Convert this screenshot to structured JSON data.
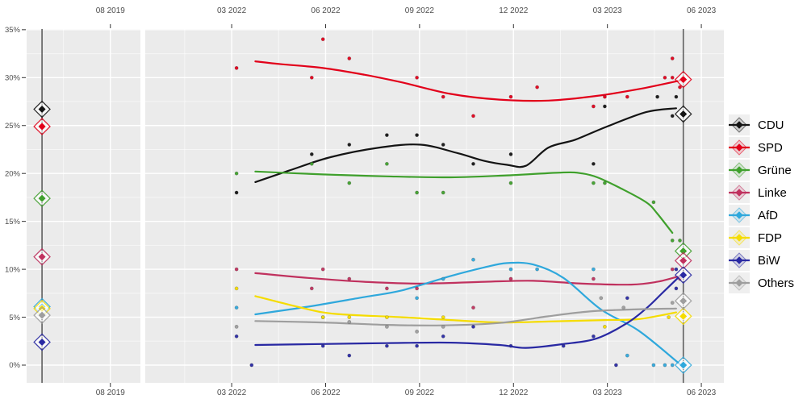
{
  "chart_data": {
    "type": "line",
    "title": "",
    "legend_position": "right",
    "grid": "on",
    "y_axis": {
      "unit": "%",
      "range": [
        0,
        35
      ],
      "ticks": [
        {
          "label": "0%",
          "v": 0
        },
        {
          "label": "5%",
          "v": 5
        },
        {
          "label": "10%",
          "v": 10
        },
        {
          "label": "15%",
          "v": 15
        },
        {
          "label": "20%",
          "v": 20
        },
        {
          "label": "25%",
          "v": 25
        },
        {
          "label": "30%",
          "v": 30
        },
        {
          "label": "35%",
          "v": 35
        }
      ]
    },
    "x_axis": {
      "facet_2019": [
        {
          "label": "08 2019",
          "t": 2019.583
        }
      ],
      "facet_2023": [
        {
          "label": "03 2022",
          "t": 2022.167
        },
        {
          "label": "06 2022",
          "t": 2022.417
        },
        {
          "label": "09 2022",
          "t": 2022.667
        },
        {
          "label": "12 2022",
          "t": 2022.917
        },
        {
          "label": "03 2023",
          "t": 2023.167
        },
        {
          "label": "06 2023",
          "t": 2023.417
        }
      ]
    },
    "election_lines": {
      "left_t": 2019.401,
      "right_t": 2023.369
    },
    "colors": {
      "election_line": "#606060",
      "panel_bg": "#EBEBEB",
      "gridline": "#FFFFFF",
      "axis_text": "#4D4D4D"
    },
    "parties": [
      {
        "id": "cdu",
        "label": "CDU",
        "color": "#141414",
        "result_2019": 26.7,
        "result_2023": 26.2,
        "trend": [
          [
            2022.23,
            19.1
          ],
          [
            2022.32,
            20.3
          ],
          [
            2022.43,
            21.7
          ],
          [
            2022.56,
            22.7
          ],
          [
            2022.67,
            23.0
          ],
          [
            2022.77,
            22.1
          ],
          [
            2022.84,
            21.3
          ],
          [
            2022.9,
            20.9
          ],
          [
            2022.95,
            20.8
          ],
          [
            2023.01,
            22.7
          ],
          [
            2023.08,
            23.5
          ],
          [
            2023.16,
            24.8
          ],
          [
            2023.27,
            26.4
          ],
          [
            2023.35,
            26.8
          ]
        ],
        "polls": [
          [
            2022.18,
            18
          ],
          [
            2022.38,
            22
          ],
          [
            2022.48,
            23
          ],
          [
            2022.58,
            24
          ],
          [
            2022.66,
            24
          ],
          [
            2022.73,
            23
          ],
          [
            2022.81,
            21
          ],
          [
            2022.91,
            22
          ],
          [
            2023.13,
            21
          ],
          [
            2023.16,
            27
          ],
          [
            2023.3,
            28
          ],
          [
            2023.34,
            26
          ],
          [
            2023.35,
            28
          ]
        ]
      },
      {
        "id": "spd",
        "label": "SPD",
        "color": "#E2001A",
        "result_2019": 24.9,
        "result_2023": 29.8,
        "trend": [
          [
            2022.23,
            31.7
          ],
          [
            2022.3,
            31.4
          ],
          [
            2022.41,
            31.0
          ],
          [
            2022.52,
            30.3
          ],
          [
            2022.62,
            29.5
          ],
          [
            2022.75,
            28.3
          ],
          [
            2022.88,
            27.7
          ],
          [
            2023.01,
            27.6
          ],
          [
            2023.14,
            28.1
          ],
          [
            2023.25,
            28.8
          ],
          [
            2023.36,
            29.7
          ]
        ],
        "polls": [
          [
            2022.18,
            31
          ],
          [
            2022.38,
            30
          ],
          [
            2022.41,
            34
          ],
          [
            2022.48,
            32
          ],
          [
            2022.66,
            30
          ],
          [
            2022.73,
            28
          ],
          [
            2022.81,
            26
          ],
          [
            2022.91,
            28
          ],
          [
            2022.98,
            29
          ],
          [
            2023.13,
            27
          ],
          [
            2023.16,
            28
          ],
          [
            2023.22,
            28
          ],
          [
            2023.32,
            30
          ],
          [
            2023.34,
            32
          ],
          [
            2023.34,
            30
          ],
          [
            2023.36,
            29
          ]
        ]
      },
      {
        "id": "gruene",
        "label": "Grüne",
        "color": "#3FA02C",
        "result_2019": 17.4,
        "result_2023": 11.9,
        "trend": [
          [
            2022.23,
            20.2
          ],
          [
            2022.41,
            19.9
          ],
          [
            2022.58,
            19.7
          ],
          [
            2022.75,
            19.6
          ],
          [
            2022.9,
            19.8
          ],
          [
            2023.05,
            20.1
          ],
          [
            2023.1,
            20.0
          ],
          [
            2023.14,
            19.6
          ],
          [
            2023.2,
            18.5
          ],
          [
            2023.27,
            17.0
          ],
          [
            2023.3,
            15.8
          ],
          [
            2023.34,
            13.8
          ]
        ],
        "polls": [
          [
            2022.18,
            20
          ],
          [
            2022.38,
            21
          ],
          [
            2022.48,
            19
          ],
          [
            2022.58,
            21
          ],
          [
            2022.66,
            18
          ],
          [
            2022.73,
            18
          ],
          [
            2022.91,
            19
          ],
          [
            2023.13,
            19
          ],
          [
            2023.16,
            19
          ],
          [
            2023.29,
            17
          ],
          [
            2023.34,
            13
          ],
          [
            2023.36,
            13
          ]
        ]
      },
      {
        "id": "linke",
        "label": "Linke",
        "color": "#C0315E",
        "result_2019": 11.3,
        "result_2023": 10.9,
        "trend": [
          [
            2022.23,
            9.6
          ],
          [
            2022.37,
            9.1
          ],
          [
            2022.52,
            8.7
          ],
          [
            2022.67,
            8.5
          ],
          [
            2022.84,
            8.7
          ],
          [
            2022.97,
            8.8
          ],
          [
            2023.1,
            8.5
          ],
          [
            2023.23,
            8.4
          ],
          [
            2023.3,
            8.7
          ],
          [
            2023.36,
            9.3
          ]
        ],
        "polls": [
          [
            2022.18,
            10
          ],
          [
            2022.38,
            8
          ],
          [
            2022.41,
            10
          ],
          [
            2022.48,
            9
          ],
          [
            2022.58,
            8
          ],
          [
            2022.66,
            8
          ],
          [
            2022.81,
            6
          ],
          [
            2022.91,
            9
          ],
          [
            2023.13,
            9
          ],
          [
            2023.34,
            10
          ],
          [
            2023.36,
            9
          ]
        ]
      },
      {
        "id": "afd",
        "label": "AfD",
        "color": "#2FA8DC",
        "result_2019": 6.1,
        "result_2023": 0.0,
        "trend": [
          [
            2022.23,
            5.3
          ],
          [
            2022.37,
            6.1
          ],
          [
            2022.52,
            7.1
          ],
          [
            2022.62,
            7.8
          ],
          [
            2022.75,
            9.3
          ],
          [
            2022.84,
            10.2
          ],
          [
            2022.9,
            10.65
          ],
          [
            2022.97,
            10.5
          ],
          [
            2023.05,
            9.1
          ],
          [
            2023.15,
            5.8
          ],
          [
            2023.25,
            3.6
          ],
          [
            2023.36,
            0.1
          ]
        ],
        "polls": [
          [
            2022.18,
            6
          ],
          [
            2022.41,
            5
          ],
          [
            2022.66,
            7
          ],
          [
            2022.73,
            9
          ],
          [
            2022.81,
            11
          ],
          [
            2022.91,
            10
          ],
          [
            2022.98,
            10
          ],
          [
            2023.13,
            10
          ],
          [
            2023.22,
            1
          ],
          [
            2023.29,
            0
          ],
          [
            2023.32,
            0
          ],
          [
            2023.34,
            0
          ]
        ]
      },
      {
        "id": "fdp",
        "label": "FDP",
        "color": "#F5DC00",
        "result_2019": 5.9,
        "result_2023": 5.1,
        "trend": [
          [
            2022.23,
            7.2
          ],
          [
            2022.32,
            6.3
          ],
          [
            2022.41,
            5.5
          ],
          [
            2022.48,
            5.25
          ],
          [
            2022.62,
            5.0
          ],
          [
            2022.75,
            4.7
          ],
          [
            2022.88,
            4.45
          ],
          [
            2023.01,
            4.55
          ],
          [
            2023.16,
            4.7
          ],
          [
            2023.25,
            4.8
          ],
          [
            2023.35,
            5.5
          ]
        ],
        "polls": [
          [
            2022.18,
            8
          ],
          [
            2022.41,
            5
          ],
          [
            2022.48,
            5
          ],
          [
            2022.58,
            5
          ],
          [
            2022.73,
            5
          ],
          [
            2023.16,
            4
          ],
          [
            2023.33,
            5
          ]
        ]
      },
      {
        "id": "biw",
        "label": "BiW",
        "color": "#2929A3",
        "result_2019": 2.4,
        "result_2023": 9.4,
        "trend": [
          [
            2022.23,
            2.1
          ],
          [
            2022.41,
            2.2
          ],
          [
            2022.58,
            2.3
          ],
          [
            2022.75,
            2.35
          ],
          [
            2022.88,
            2.1
          ],
          [
            2022.95,
            1.8
          ],
          [
            2023.05,
            2.2
          ],
          [
            2023.14,
            2.8
          ],
          [
            2023.22,
            4.4
          ],
          [
            2023.27,
            5.9
          ],
          [
            2023.31,
            7.4
          ],
          [
            2023.36,
            9.3
          ]
        ],
        "polls": [
          [
            2022.18,
            3
          ],
          [
            2022.22,
            0
          ],
          [
            2022.41,
            2
          ],
          [
            2022.48,
            1
          ],
          [
            2022.58,
            2
          ],
          [
            2022.66,
            2
          ],
          [
            2022.73,
            3
          ],
          [
            2022.81,
            4
          ],
          [
            2022.91,
            2
          ],
          [
            2023.05,
            2
          ],
          [
            2023.13,
            3
          ],
          [
            2023.19,
            0
          ],
          [
            2023.22,
            7
          ],
          [
            2023.35,
            10
          ],
          [
            2023.35,
            8
          ]
        ]
      },
      {
        "id": "others",
        "label": "Others",
        "color": "#9E9E9E",
        "result_2019": 5.2,
        "result_2023": 6.7,
        "trend": [
          [
            2022.23,
            4.6
          ],
          [
            2022.41,
            4.45
          ],
          [
            2022.58,
            4.2
          ],
          [
            2022.73,
            4.15
          ],
          [
            2022.88,
            4.4
          ],
          [
            2023.01,
            5.1
          ],
          [
            2023.12,
            5.6
          ],
          [
            2023.23,
            5.8
          ],
          [
            2023.35,
            5.9
          ]
        ],
        "polls": [
          [
            2022.18,
            4
          ],
          [
            2022.48,
            4.5
          ],
          [
            2022.58,
            4
          ],
          [
            2022.66,
            3.5
          ],
          [
            2022.73,
            4
          ],
          [
            2023.15,
            7
          ],
          [
            2023.21,
            6
          ],
          [
            2023.34,
            6.5
          ]
        ]
      }
    ]
  }
}
